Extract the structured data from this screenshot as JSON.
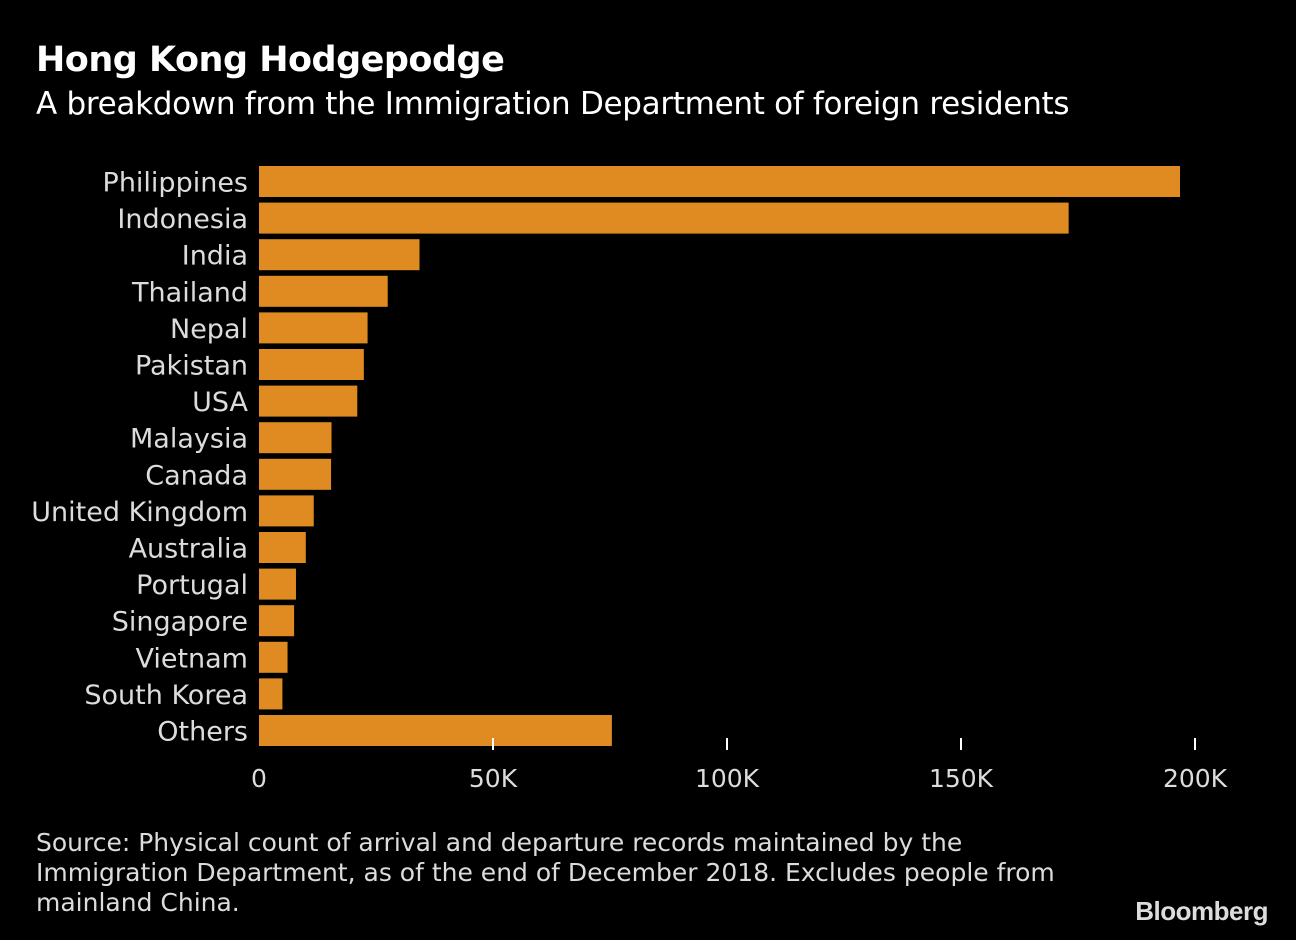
{
  "header": {
    "title": "Hong Kong Hodgepodge",
    "subtitle": "A breakdown from the Immigration Department of foreign residents"
  },
  "chart_data": {
    "type": "bar",
    "orientation": "horizontal",
    "title": "Hong Kong Hodgepodge",
    "subtitle": "A breakdown from the Immigration Department of foreign residents",
    "xlabel": "",
    "ylabel": "",
    "categories": [
      "Philippines",
      "Indonesia",
      "India",
      "Thailand",
      "Nepal",
      "Pakistan",
      "USA",
      "Malaysia",
      "Canada",
      "United Kingdom",
      "Australia",
      "Portugal",
      "Singapore",
      "Vietnam",
      "South Korea",
      "Others"
    ],
    "values": [
      196800,
      173000,
      34300,
      27500,
      23200,
      22400,
      21000,
      15500,
      15400,
      11700,
      10000,
      7900,
      7500,
      6100,
      5000,
      75400
    ],
    "xlim": [
      0,
      200000
    ],
    "xticks": [
      0,
      50000,
      100000,
      150000,
      200000
    ],
    "xtick_labels": [
      "0",
      "50K",
      "100K",
      "150K",
      "200K"
    ],
    "grid": false,
    "bar_color": "#e08b22"
  },
  "footer": {
    "source": "Source: Physical count of arrival and departure records maintained by the Immigration Department, as of the end of December 2018. Excludes people from mainland China.",
    "brand": "Bloomberg"
  }
}
